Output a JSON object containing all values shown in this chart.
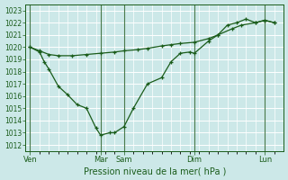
{
  "xlabel": "Pression niveau de la mer( hPa )",
  "ylim": [
    1011.5,
    1023.5
  ],
  "yticks": [
    1012,
    1013,
    1014,
    1015,
    1016,
    1017,
    1018,
    1019,
    1020,
    1021,
    1022,
    1023
  ],
  "bg_color": "#cce8e8",
  "grid_color": "#ffffff",
  "line_color": "#1a5c1a",
  "day_labels": [
    "Ven",
    "Mar",
    "Sam",
    "Dim",
    "Lun"
  ],
  "day_x": [
    0,
    30,
    40,
    70,
    100
  ],
  "xlim": [
    -2,
    108
  ],
  "num_minor_x": 110,
  "series1_x": [
    0,
    4,
    6,
    8,
    12,
    16,
    20,
    24,
    28,
    30,
    34,
    36,
    40,
    44,
    50,
    56,
    60,
    64,
    68,
    70,
    76,
    80,
    84,
    88,
    92,
    96,
    100,
    104
  ],
  "series1_y": [
    1020.0,
    1019.6,
    1018.8,
    1018.2,
    1016.8,
    1016.1,
    1015.3,
    1015.0,
    1013.4,
    1012.8,
    1013.0,
    1013.0,
    1013.5,
    1015.0,
    1017.0,
    1017.5,
    1018.8,
    1019.5,
    1019.6,
    1019.5,
    1020.5,
    1021.0,
    1021.8,
    1022.0,
    1022.3,
    1022.0,
    1022.2,
    1022.0
  ],
  "series2_x": [
    0,
    4,
    8,
    12,
    18,
    24,
    30,
    36,
    40,
    46,
    50,
    56,
    60,
    64,
    70,
    76,
    80,
    86,
    90,
    96,
    100,
    104
  ],
  "series2_y": [
    1020.0,
    1019.7,
    1019.4,
    1019.3,
    1019.3,
    1019.4,
    1019.5,
    1019.6,
    1019.7,
    1019.8,
    1019.9,
    1020.1,
    1020.2,
    1020.3,
    1020.4,
    1020.7,
    1021.0,
    1021.5,
    1021.8,
    1022.0,
    1022.2,
    1022.0
  ]
}
